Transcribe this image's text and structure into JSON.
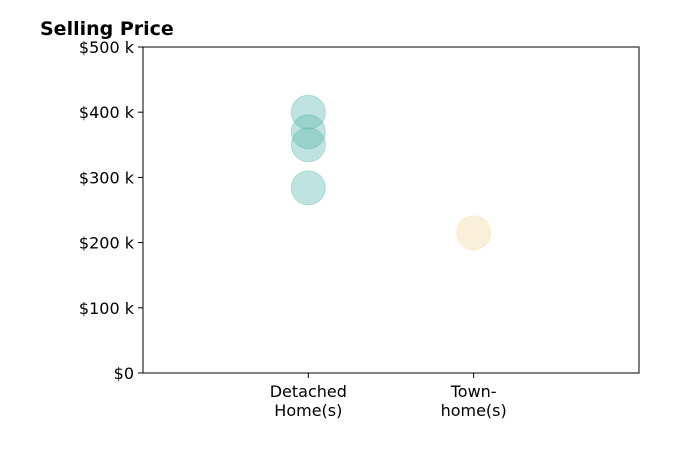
{
  "chart_data": {
    "type": "scatter",
    "title": "Selling Price",
    "xlabel": "",
    "ylabel": "",
    "categories": [
      [
        "Detached",
        "Home(s)"
      ],
      [
        "Town-",
        "home(s)"
      ]
    ],
    "y_ticks": [
      "$0",
      "$100 k",
      "$200 k",
      "$300 k",
      "$400 k",
      "$500 k"
    ],
    "y_tick_values": [
      0,
      100,
      200,
      300,
      400,
      500
    ],
    "ylim": [
      0,
      500
    ],
    "x_range": [
      -1,
      2
    ],
    "grid": false,
    "legend": "none",
    "series": [
      {
        "category_index": 0,
        "color": "#5fb8ad",
        "points": [
          {
            "x": 0,
            "y": 400
          },
          {
            "x": 0,
            "y": 370
          },
          {
            "x": 0,
            "y": 350
          },
          {
            "x": 0,
            "y": 284
          }
        ]
      },
      {
        "category_index": 1,
        "color": "#f3d9a0",
        "points": [
          {
            "x": 1,
            "y": 215
          }
        ]
      }
    ]
  }
}
